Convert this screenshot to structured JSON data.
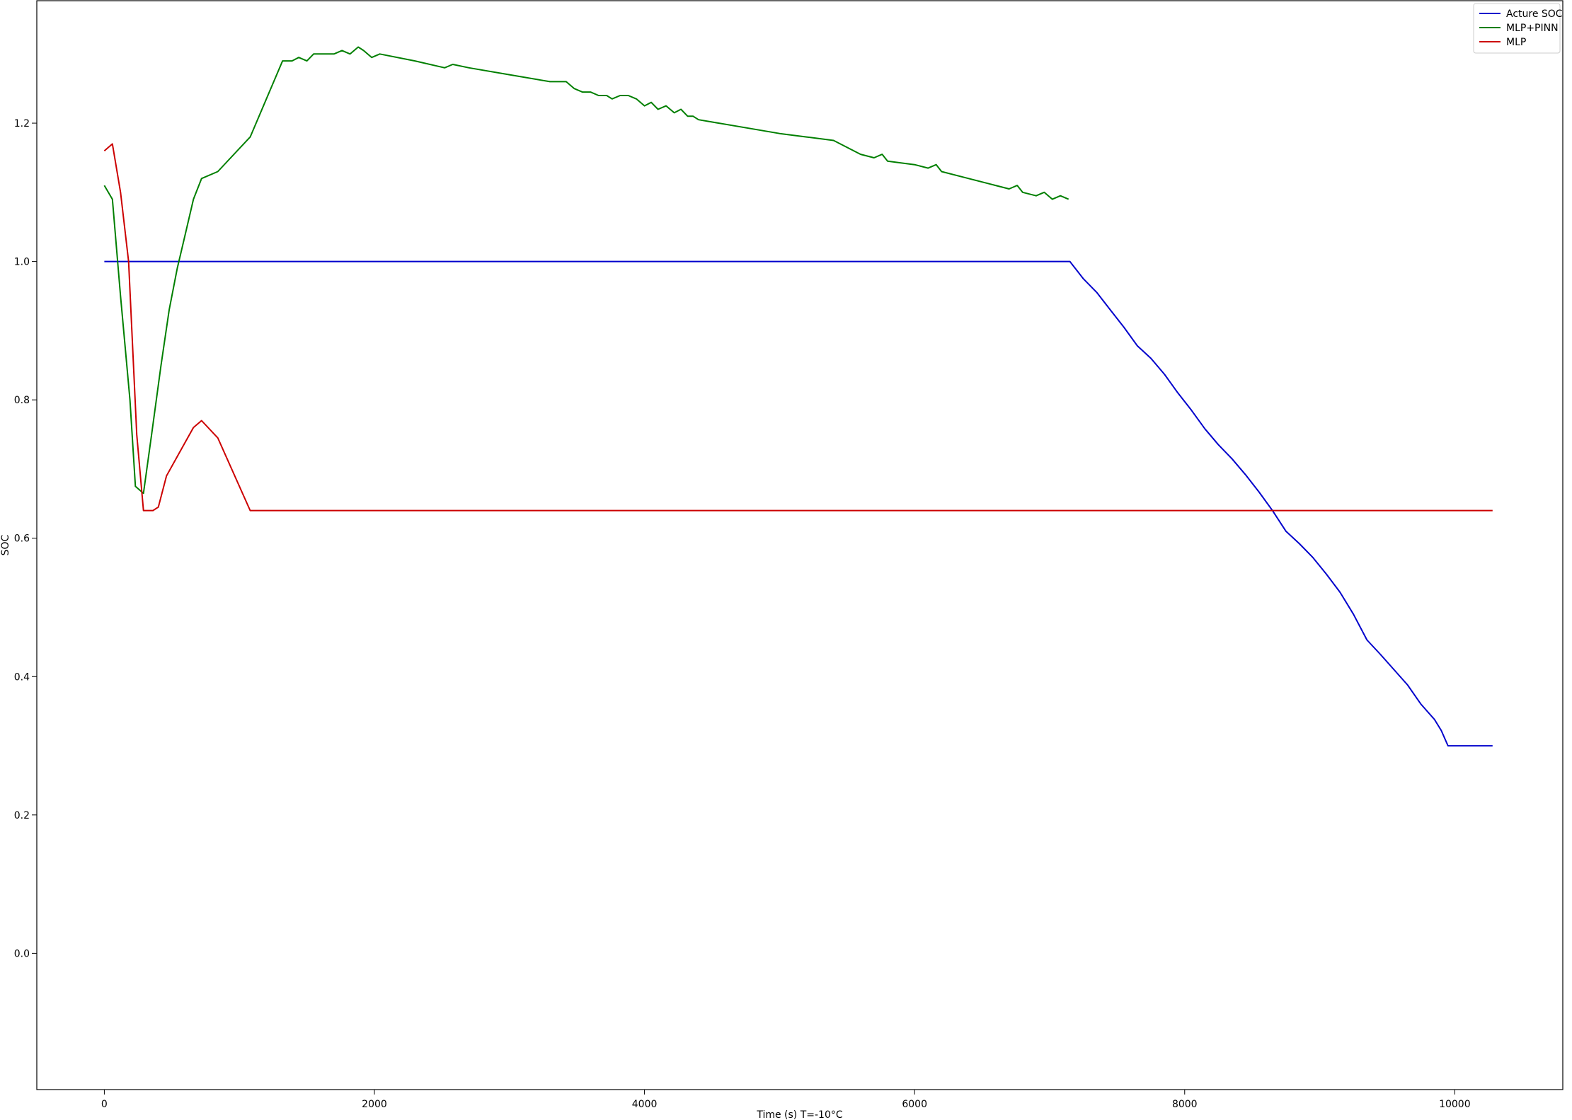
{
  "chart_data": {
    "type": "line",
    "title": "",
    "xlabel": "Time (s) T=-10°C",
    "ylabel": "SOC",
    "xlim": [
      -500,
      10800
    ],
    "ylim": [
      -0.197,
      1.377
    ],
    "xticks": [
      0,
      2000,
      4000,
      6000,
      8000,
      10000
    ],
    "xtick_labels": [
      "0",
      "2000",
      "4000",
      "6000",
      "8000",
      "10000"
    ],
    "yticks": [
      0.0,
      0.2,
      0.4,
      0.6,
      0.8,
      1.0,
      1.2
    ],
    "ytick_labels": [
      "0.0",
      "0.2",
      "0.4",
      "0.6",
      "0.8",
      "1.0",
      "1.2"
    ],
    "grid": false,
    "legend_position": "top-right",
    "series": [
      {
        "name": "Acture SOC",
        "color": "#0000cc",
        "x": [
          0,
          7150,
          7250,
          7350,
          7450,
          7550,
          7650,
          7750,
          7850,
          7950,
          8050,
          8150,
          8250,
          8350,
          8450,
          8550,
          8650,
          8750,
          8850,
          8950,
          9050,
          9150,
          9250,
          9350,
          9450,
          9550,
          9650,
          9750,
          9850,
          9900,
          9950,
          10280
        ],
        "y": [
          1.0,
          1.0,
          0.975,
          0.955,
          0.93,
          0.905,
          0.878,
          0.86,
          0.837,
          0.81,
          0.785,
          0.758,
          0.735,
          0.715,
          0.692,
          0.667,
          0.64,
          0.61,
          0.592,
          0.572,
          0.548,
          0.522,
          0.49,
          0.453,
          0.432,
          0.41,
          0.388,
          0.36,
          0.338,
          0.322,
          0.3,
          0.3
        ]
      },
      {
        "name": "MLP+PINN",
        "color": "#007f00",
        "x": [
          0,
          60,
          120,
          190,
          230,
          290,
          350,
          420,
          480,
          540,
          600,
          660,
          720,
          840,
          1080,
          1320,
          1390,
          1440,
          1500,
          1550,
          1600,
          1700,
          1760,
          1820,
          1880,
          1920,
          1980,
          2040,
          2300,
          2520,
          2580,
          2700,
          3000,
          3300,
          3380,
          3420,
          3480,
          3540,
          3600,
          3660,
          3720,
          3760,
          3820,
          3880,
          3940,
          4000,
          4050,
          4100,
          4160,
          4220,
          4270,
          4320,
          4360,
          4400,
          5000,
          5200,
          5400,
          5600,
          5700,
          5760,
          5800,
          6000,
          6100,
          6160,
          6200,
          6400,
          6600,
          6700,
          6760,
          6800,
          6900,
          6960,
          7020,
          7080,
          7140
        ],
        "y": [
          1.11,
          1.09,
          0.95,
          0.8,
          0.675,
          0.665,
          0.75,
          0.85,
          0.93,
          0.99,
          1.04,
          1.09,
          1.12,
          1.13,
          1.18,
          1.29,
          1.29,
          1.295,
          1.29,
          1.3,
          1.3,
          1.3,
          1.305,
          1.3,
          1.31,
          1.305,
          1.295,
          1.3,
          1.29,
          1.28,
          1.285,
          1.28,
          1.27,
          1.26,
          1.26,
          1.26,
          1.25,
          1.245,
          1.245,
          1.24,
          1.24,
          1.235,
          1.24,
          1.24,
          1.235,
          1.225,
          1.23,
          1.22,
          1.225,
          1.215,
          1.22,
          1.21,
          1.21,
          1.205,
          1.185,
          1.18,
          1.175,
          1.155,
          1.15,
          1.155,
          1.145,
          1.14,
          1.135,
          1.14,
          1.13,
          1.12,
          1.11,
          1.105,
          1.11,
          1.1,
          1.095,
          1.1,
          1.09,
          1.095,
          1.09
        ]
      },
      {
        "name": "MLP",
        "color": "#cc0000",
        "x": [
          0,
          60,
          120,
          180,
          240,
          290,
          330,
          360,
          400,
          460,
          560,
          660,
          720,
          840,
          1080,
          10280
        ],
        "y": [
          1.16,
          1.17,
          1.1,
          1.0,
          0.75,
          0.64,
          0.64,
          0.64,
          0.645,
          0.69,
          0.725,
          0.76,
          0.77,
          0.745,
          0.64,
          0.64
        ]
      }
    ]
  }
}
